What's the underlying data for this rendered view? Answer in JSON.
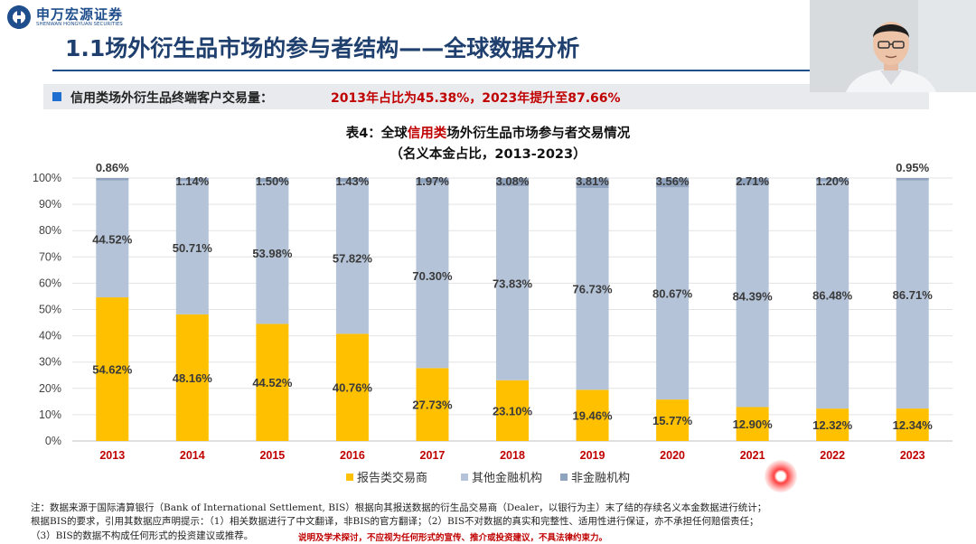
{
  "logo": {
    "cn": "申万宏源证券",
    "en": "SHENWAN HONGYUAN SECURITIES"
  },
  "slide_title": "1.1场外衍生品市场的参与者结构——全球数据分析",
  "highlight": {
    "label": "信用类场外衍生品终端客户交易量：",
    "value": "2013年占比为45.38%，2023年提升至87.66%"
  },
  "chart_title": {
    "line1_pre": "表4：全球",
    "line1_red": "信用类",
    "line1_post": "场外衍生品市场参与者交易情况",
    "line2": "（名义本金占比，2013-2023）"
  },
  "chart_data": {
    "type": "bar",
    "stacked": true,
    "categories": [
      "2013",
      "2014",
      "2015",
      "2016",
      "2017",
      "2018",
      "2019",
      "2020",
      "2021",
      "2022",
      "2023"
    ],
    "series": [
      {
        "name": "报告类交易商",
        "color": "#ffc000",
        "values": [
          54.62,
          48.16,
          44.52,
          40.76,
          27.73,
          23.1,
          19.46,
          15.77,
          12.9,
          12.32,
          12.34
        ],
        "labels": [
          "54.62%",
          "48.16%",
          "44.52%",
          "40.76%",
          "27.73%",
          "23.10%",
          "19.46%",
          "15.77%",
          "12.90%",
          "12.32%",
          "12.34%"
        ]
      },
      {
        "name": "其他金融机构",
        "color": "#b4c3d8",
        "values": [
          44.52,
          50.71,
          53.98,
          57.82,
          70.3,
          73.83,
          76.73,
          80.67,
          84.39,
          86.48,
          86.71
        ],
        "labels": [
          "44.52%",
          "50.71%",
          "53.98%",
          "57.82%",
          "70.30%",
          "73.83%",
          "76.73%",
          "80.67%",
          "84.39%",
          "86.48%",
          "86.71%"
        ]
      },
      {
        "name": "非金融机构",
        "color": "#8fa3bf",
        "values": [
          0.86,
          1.14,
          1.5,
          1.43,
          1.97,
          3.08,
          3.81,
          3.56,
          2.71,
          1.2,
          0.95
        ],
        "labels": [
          "0.86%",
          "1.14%",
          "1.50%",
          "1.43%",
          "1.97%",
          "3.08%",
          "3.81%",
          "3.56%",
          "2.71%",
          "1.20%",
          "0.95%"
        ]
      }
    ],
    "ylim": [
      0,
      100
    ],
    "yticks": [
      "0%",
      "10%",
      "20%",
      "30%",
      "40%",
      "50%",
      "60%",
      "70%",
      "80%",
      "90%",
      "100%"
    ],
    "grid": true,
    "legend": "bottom"
  },
  "notes": {
    "line1": "注：数据来源于国际清算银行（Bank of International Settlement, BIS）根据向其报送数据的衍生品交易商（Dealer，以银行为主）末了结的存续名义本金数据进行统计；",
    "line2": "根据BIS的要求，引用其数据应声明提示：（1）相关数据进行了中文翻译，非BIS的官方翻译；（2）BIS不对数据的真实和完整性、适用性进行保证，亦不承担任何赔偿责任；",
    "line3": "（3）BIS的数据不构成任何形式的投资建议或推荐。",
    "disclaimer": "说明及学术探讨，不应视为任何形式的宣传、推介或投资建议，不具法律约束力。"
  }
}
